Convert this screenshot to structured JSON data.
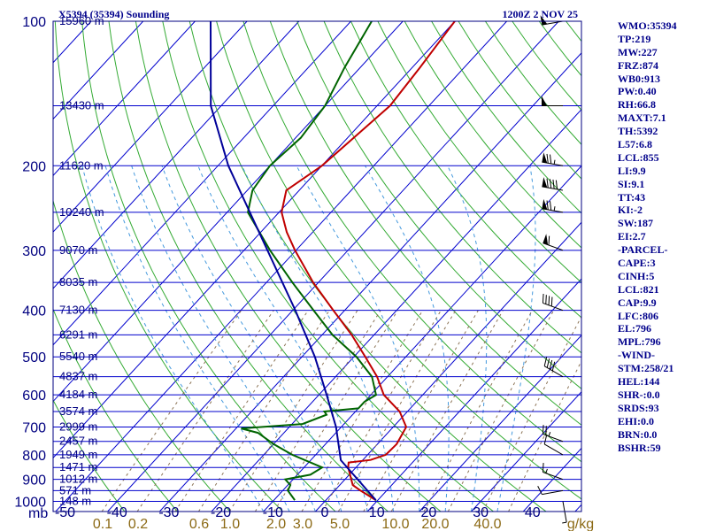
{
  "header": {
    "station": "X5394 (35394) Sounding",
    "time": "1200Z  2 NOV 25"
  },
  "indices": [
    "WMO:35394",
    "TP:219",
    "MW:227",
    "FRZ:874",
    "WB0:913",
    "PW:0.40",
    "RH:66.8",
    "MAXT:7.1",
    "TH:5392",
    "L57:6.8",
    "LCL:855",
    "LI:9.9",
    "SI:9.1",
    "TT:43",
    "KI:-2",
    "SW:187",
    "EI:2.7",
    "-PARCEL-",
    "CAPE:3",
    "CINH:5",
    "LCL:821",
    "CAP:9.9",
    "LFC:806",
    "EL:796",
    "MPL:796",
    "-WIND-",
    "STM:258/21",
    "HEL:144",
    "SHR-:0.0",
    "SRDS:93",
    "EHI:0.0",
    "BRN:0.0",
    "BSHR:59"
  ],
  "colors": {
    "isobar": "#0000cd",
    "isotherm": "#0000cd",
    "dry_adiabat": "#33aa33",
    "moist_adiabat": "#4499dd",
    "mixing_ratio": "#8b7355",
    "temperature": "#c00000",
    "dewpoint": "#006400",
    "parcel": "#000099",
    "wind": "#000000"
  },
  "chart_data": {
    "type": "skew-t",
    "y_axis": {
      "scale": "log",
      "unit": "mb",
      "range": [
        1000,
        100
      ]
    },
    "x_axis": {
      "unit": "°C",
      "range": [
        -50,
        50
      ]
    },
    "pressure_tick_labels": [
      "100",
      "200",
      "300",
      "400",
      "500",
      "600",
      "700",
      "800",
      "900",
      "1000"
    ],
    "pressure_unit_label": "mb",
    "temperature_tick_labels": [
      "-50",
      "-40",
      "-30",
      "-20",
      "-10",
      "0",
      "10",
      "20",
      "30",
      "40"
    ],
    "mixing_ratio_labels": [
      "0.1",
      "0.2",
      "0.6",
      "1.0",
      "2.0",
      "3.0",
      "5.0",
      "10.0",
      "20.0",
      "40.0"
    ],
    "mixing_ratio_unit": "g/kg",
    "height_labels": [
      {
        "p": 100,
        "label": "15960 m"
      },
      {
        "p": 150,
        "label": "13430 m"
      },
      {
        "p": 200,
        "label": "11620 m"
      },
      {
        "p": 250,
        "label": "10240 m"
      },
      {
        "p": 300,
        "label": "9070 m"
      },
      {
        "p": 350,
        "label": "8035 m"
      },
      {
        "p": 400,
        "label": "7130 m"
      },
      {
        "p": 450,
        "label": "6291 m"
      },
      {
        "p": 500,
        "label": "5540 m"
      },
      {
        "p": 550,
        "label": "4837 m"
      },
      {
        "p": 600,
        "label": "4184 m"
      },
      {
        "p": 650,
        "label": "3574 m"
      },
      {
        "p": 700,
        "label": "2999 m"
      },
      {
        "p": 750,
        "label": "2457 m"
      },
      {
        "p": 800,
        "label": "1949 m"
      },
      {
        "p": 850,
        "label": "1471 m"
      },
      {
        "p": 900,
        "label": "1012 m"
      },
      {
        "p": 950,
        "label": "571 m"
      },
      {
        "p": 1000,
        "label": "148 m"
      }
    ],
    "series": [
      {
        "name": "",
        "points": [
          [
            994,
            9.6
          ],
          [
            950,
            5.0
          ],
          [
            925,
            2.5
          ],
          [
            850,
            -1.5
          ],
          [
            830,
            -2.3
          ],
          [
            820,
            1.5
          ],
          [
            800,
            3.5
          ],
          [
            760,
            3.7
          ],
          [
            700,
            2.5
          ],
          [
            650,
            -1.5
          ],
          [
            600,
            -7.5
          ],
          [
            550,
            -12.0
          ],
          [
            500,
            -17.8
          ],
          [
            450,
            -24.3
          ],
          [
            400,
            -32.2
          ],
          [
            350,
            -41.0
          ],
          [
            300,
            -50.2
          ],
          [
            275,
            -55.0
          ],
          [
            250,
            -59.5
          ],
          [
            225,
            -62.5
          ],
          [
            200,
            -60.0
          ],
          [
            175,
            -58.8
          ],
          [
            150,
            -57.5
          ],
          [
            125,
            -58.5
          ],
          [
            100,
            -60.0
          ]
        ]
      },
      {
        "name": "",
        "points": [
          [
            994,
            -6.0
          ],
          [
            950,
            -9.0
          ],
          [
            925,
            -9.5
          ],
          [
            900,
            -11.5
          ],
          [
            880,
            -7.5
          ],
          [
            850,
            -6.5
          ],
          [
            800,
            -14.5
          ],
          [
            760,
            -20.0
          ],
          [
            720,
            -25.0
          ],
          [
            705,
            -29.0
          ],
          [
            690,
            -18.0
          ],
          [
            660,
            -15.0
          ],
          [
            650,
            -16.0
          ],
          [
            640,
            -10.0
          ],
          [
            620,
            -10.0
          ],
          [
            600,
            -9.0
          ],
          [
            550,
            -13.0
          ],
          [
            500,
            -19.5
          ],
          [
            450,
            -28.0
          ],
          [
            400,
            -36.0
          ],
          [
            350,
            -45.0
          ],
          [
            300,
            -55.0
          ],
          [
            250,
            -66.0
          ],
          [
            225,
            -69.0
          ],
          [
            200,
            -70.0
          ],
          [
            175,
            -69.0
          ],
          [
            150,
            -70.0
          ],
          [
            125,
            -73.0
          ],
          [
            100,
            -76.0
          ]
        ]
      },
      {
        "name": "",
        "points": [
          [
            994,
            9.6
          ],
          [
            821,
            -4.2
          ],
          [
            700,
            -11.0
          ],
          [
            600,
            -18.5
          ],
          [
            500,
            -27.5
          ],
          [
            400,
            -39.5
          ],
          [
            300,
            -55.5
          ],
          [
            200,
            -78.0
          ],
          [
            150,
            -92.0
          ],
          [
            100,
            -107.0
          ]
        ]
      }
    ],
    "wind_barbs": [
      {
        "p": 1000,
        "dir": 170,
        "kt": 5
      },
      {
        "p": 950,
        "dir": 260,
        "kt": 10
      },
      {
        "p": 900,
        "dir": 290,
        "kt": 15
      },
      {
        "p": 800,
        "dir": 300,
        "kt": 10
      },
      {
        "p": 750,
        "dir": 290,
        "kt": 25
      },
      {
        "p": 550,
        "dir": 300,
        "kt": 40
      },
      {
        "p": 400,
        "dir": 290,
        "kt": 40
      },
      {
        "p": 300,
        "dir": 290,
        "kt": 60
      },
      {
        "p": 250,
        "dir": 280,
        "kt": 75
      },
      {
        "p": 225,
        "dir": 280,
        "kt": 90
      },
      {
        "p": 200,
        "dir": 280,
        "kt": 75
      },
      {
        "p": 150,
        "dir": 270,
        "kt": 50
      },
      {
        "p": 100,
        "dir": 260,
        "kt": 50
      }
    ]
  }
}
